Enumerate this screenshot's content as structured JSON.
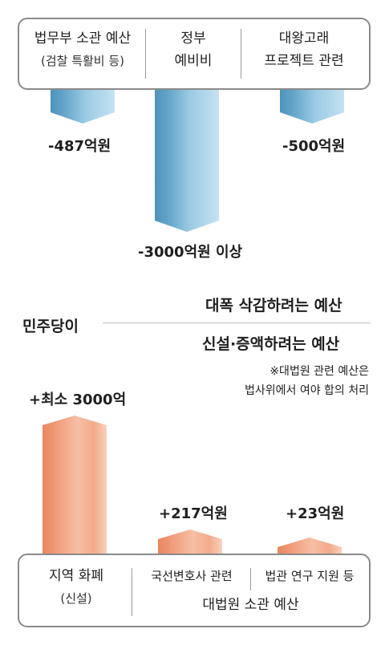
{
  "chart_data": [
    {
      "type": "bar",
      "title": "대폭 삭감하려는 예산",
      "categories": [
        {
          "label": "법무부 소관 예산",
          "sublabel": "(검찰 특활비 등)"
        },
        {
          "label": "정부",
          "sublabel": "예비비"
        },
        {
          "label": "대왕고래",
          "sublabel": "프로젝트 관련"
        }
      ],
      "values": [
        -487,
        -3000,
        -500
      ],
      "value_labels": [
        "-487억원",
        "-3000억원 이상",
        "-500억원"
      ],
      "colors": {
        "dark": "#5e9fc4",
        "light": "#a9d2e8"
      }
    },
    {
      "type": "bar",
      "title": "신설·증액하려는 예산",
      "categories": [
        {
          "label": "지역 화폐",
          "sublabel": "(신설)"
        },
        {
          "label": "국선변호사 관련",
          "sublabel": ""
        },
        {
          "label": "법관 연구 지원 등",
          "sublabel": ""
        }
      ],
      "group_label": "대법원 소관 예산",
      "values": [
        3000,
        217,
        23
      ],
      "value_labels": [
        "+최소 3000억",
        "+217억원",
        "+23억원"
      ],
      "colors": {
        "dark": "#ea8f6c",
        "light": "#f6c7ae"
      }
    }
  ],
  "party_label": "민주당이",
  "note": [
    "※대법원 관련 예산은",
    "법사위에서 여야 합의 처리"
  ]
}
